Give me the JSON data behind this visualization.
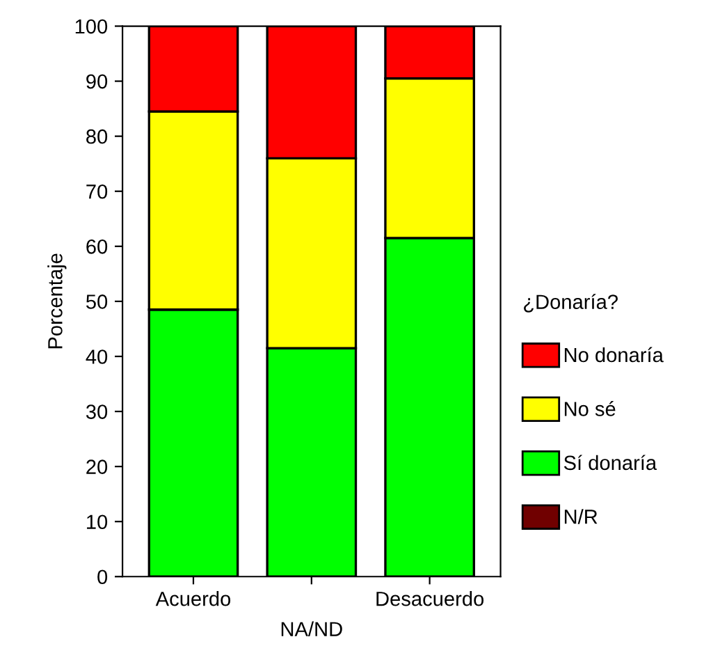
{
  "chart_data": {
    "type": "bar",
    "stacked": true,
    "categories": [
      "Acuerdo",
      "NA/ND",
      "Desacuerdo"
    ],
    "ylabel": "Porcentaje",
    "legend_title": "¿Donaría?",
    "ylim": [
      0,
      100
    ],
    "yticks": [
      0,
      10,
      20,
      30,
      40,
      50,
      60,
      70,
      80,
      90,
      100
    ],
    "grid": false,
    "legend": "right",
    "series": [
      {
        "name": "N/R",
        "color": "#700000",
        "values": [
          null,
          null,
          null
        ]
      },
      {
        "name": "Sí donaría",
        "color": "#00ff00",
        "values": [
          48.5,
          41.5,
          61.5
        ]
      },
      {
        "name": "No sé",
        "color": "#ffff00",
        "values": [
          36,
          34.5,
          29
        ]
      },
      {
        "name": "No donaría",
        "color": "#ff0000",
        "values": [
          15.5,
          24,
          9.5
        ]
      }
    ]
  }
}
